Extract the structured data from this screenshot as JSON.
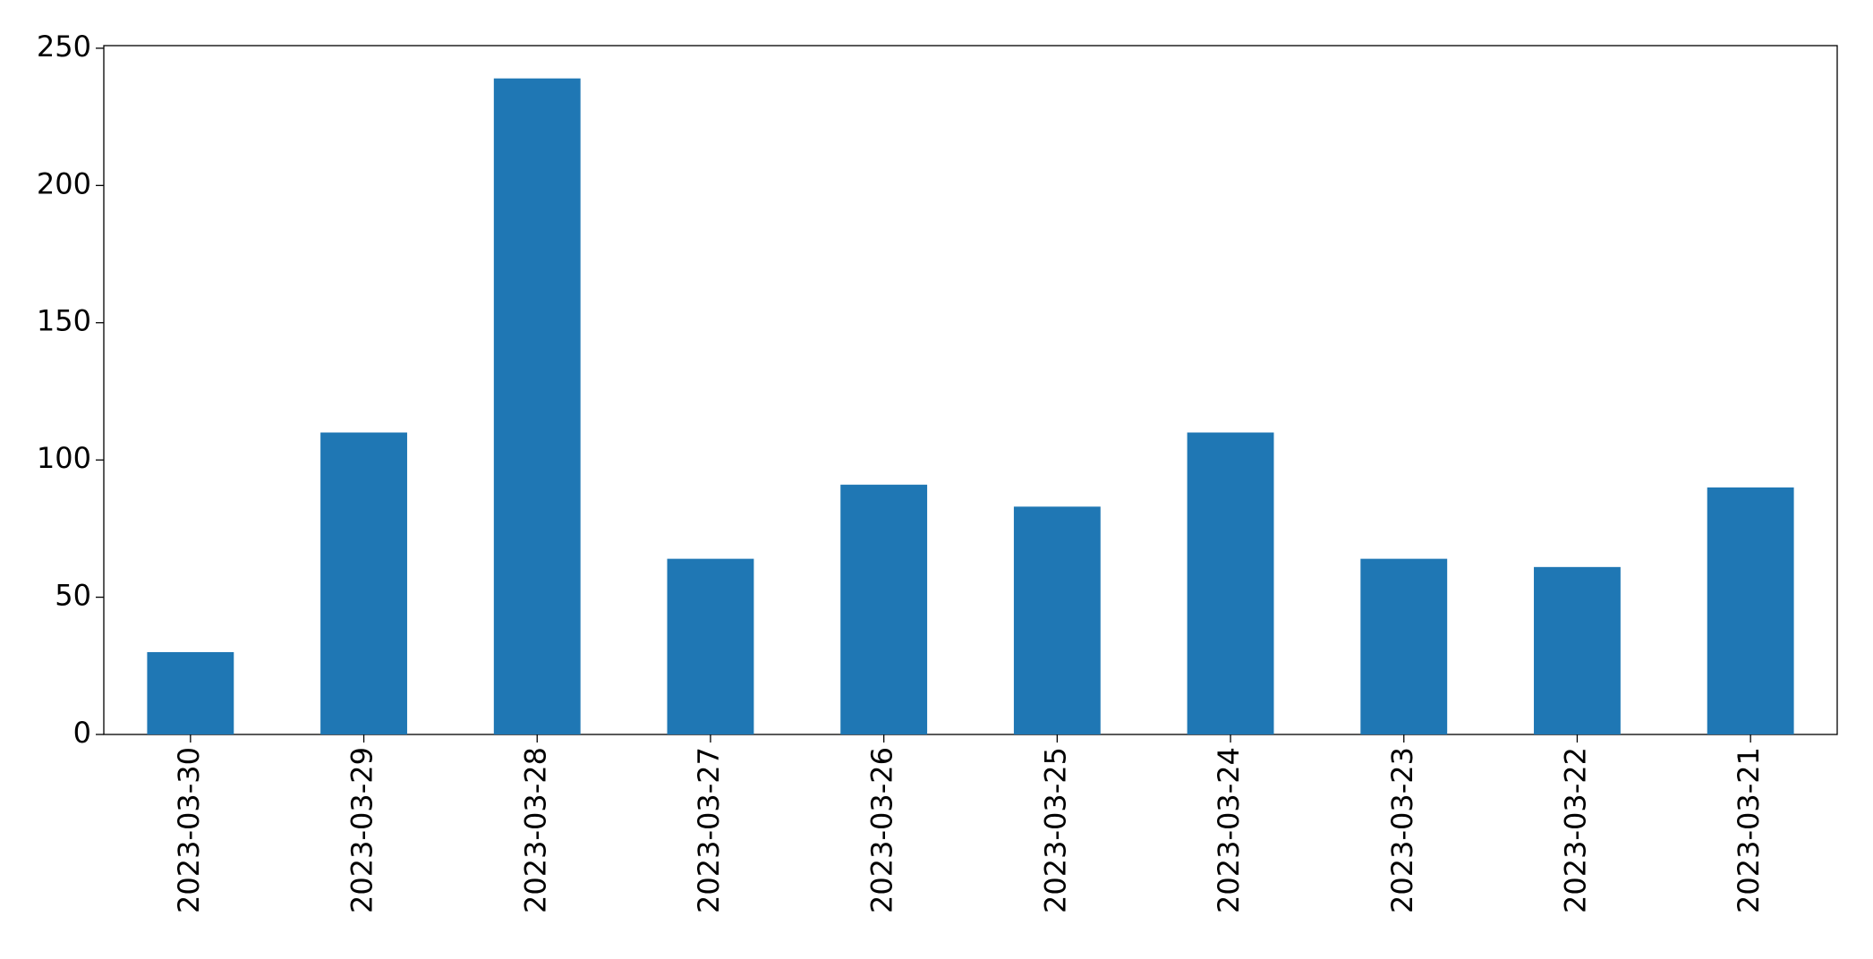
{
  "chart_data": {
    "type": "bar",
    "categories": [
      "2023-03-30",
      "2023-03-29",
      "2023-03-28",
      "2023-03-27",
      "2023-03-26",
      "2023-03-25",
      "2023-03-24",
      "2023-03-23",
      "2023-03-22",
      "2023-03-21"
    ],
    "values": [
      30,
      110,
      239,
      64,
      91,
      83,
      110,
      64,
      61,
      90
    ],
    "color": "#1f77b4",
    "ylim": [
      0,
      250.95
    ],
    "yticks": [
      0,
      50,
      100,
      150,
      200,
      250
    ],
    "grid": false
  }
}
